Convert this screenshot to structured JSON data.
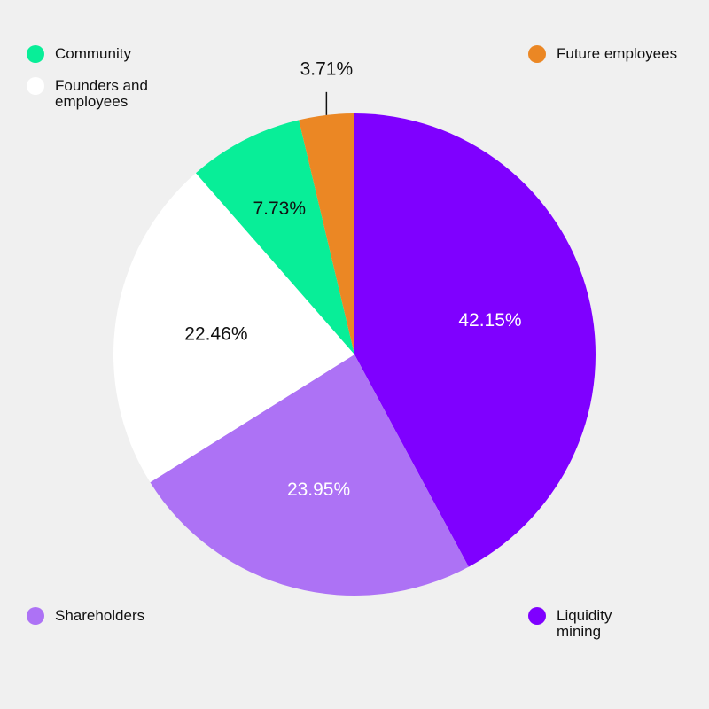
{
  "chart_data": {
    "type": "pie",
    "slices": [
      {
        "name": "Liquidity mining",
        "value": 42.15,
        "label": "42.15%",
        "color": "#7f00ff",
        "label_color": "#ffffff"
      },
      {
        "name": "Shareholders",
        "value": 23.95,
        "label": "23.95%",
        "color": "#ad72f5",
        "label_color": "#ffffff"
      },
      {
        "name": "Founders and employees",
        "value": 22.46,
        "label": "22.46%",
        "color": "#ffffff",
        "label_color": "#111111"
      },
      {
        "name": "Community",
        "value": 7.73,
        "label": "7.73%",
        "color": "#08ee98",
        "label_color": "#111111"
      },
      {
        "name": "Future employees",
        "value": 3.71,
        "label": "3.71%",
        "color": "#eb8724",
        "label_color": "#111111",
        "label_outside": true
      }
    ],
    "start": "12 o'clock",
    "direction": "clockwise",
    "legend": [
      {
        "name": "Community",
        "color": "#08ee98"
      },
      {
        "name": "Founders and employees",
        "color": "#ffffff"
      },
      {
        "name": "Future employees",
        "color": "#eb8724"
      },
      {
        "name": "Shareholders",
        "color": "#ad72f5"
      },
      {
        "name": "Liquidity mining",
        "color": "#7f00ff"
      }
    ]
  },
  "background": "#f0f0f0"
}
